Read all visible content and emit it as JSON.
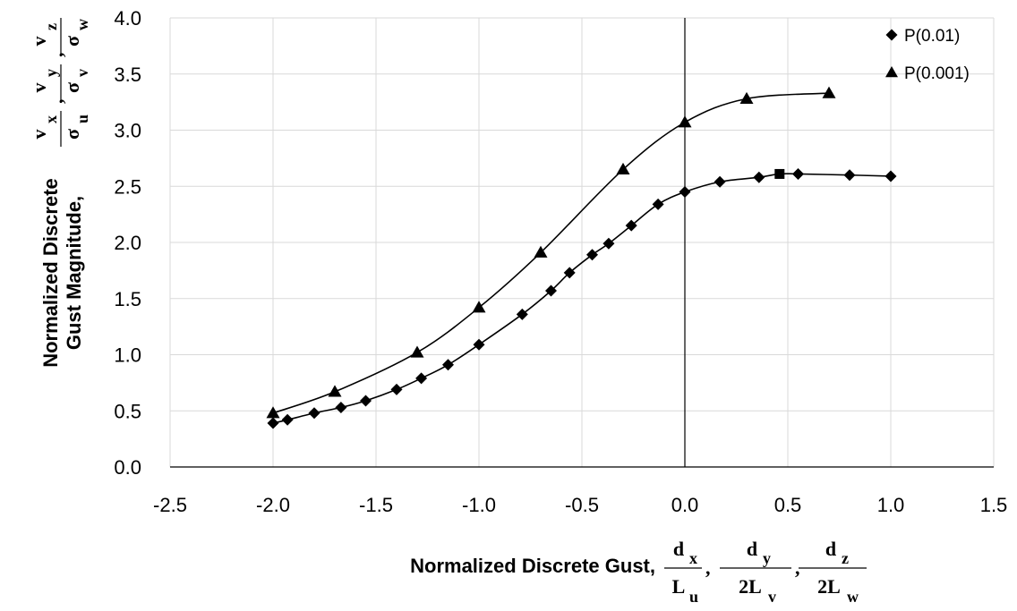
{
  "chart_data": {
    "type": "scatter",
    "x_range": [
      -2.5,
      1.5
    ],
    "y_range": [
      0.0,
      4.0
    ],
    "x_major_step": 0.5,
    "y_major_step": 0.5,
    "grid": true,
    "x_ticks": [
      "-2.5",
      "-2.0",
      "-1.5",
      "-1.0",
      "-0.5",
      "0.0",
      "0.5",
      "1.0",
      "1.5"
    ],
    "y_ticks": [
      "0.0",
      "0.5",
      "1.0",
      "1.5",
      "2.0",
      "2.5",
      "3.0",
      "3.5",
      "4.0"
    ],
    "xlabel": "Normalized Discrete Gust,",
    "ylabel_line1": "Normalized Discrete",
    "ylabel_line2": "Gust Magnitude,",
    "legend_position": "top-right",
    "series": [
      {
        "name": "P(0.01)",
        "marker": "diamond",
        "x": [
          -2.0,
          -1.93,
          -1.8,
          -1.67,
          -1.55,
          -1.4,
          -1.28,
          -1.15,
          -1.0,
          -0.79,
          -0.65,
          -0.56,
          -0.45,
          -0.37,
          -0.26,
          -0.13,
          0.0,
          0.17,
          0.36,
          0.46,
          0.55,
          0.8,
          1.0
        ],
        "y": [
          0.39,
          0.42,
          0.48,
          0.53,
          0.59,
          0.69,
          0.79,
          0.91,
          1.09,
          1.36,
          1.57,
          1.73,
          1.89,
          1.99,
          2.15,
          2.34,
          2.45,
          2.54,
          2.58,
          2.61,
          2.61,
          2.6,
          2.59
        ],
        "special_points": [
          {
            "index": 19,
            "marker": "square"
          }
        ]
      },
      {
        "name": "P(0.001)",
        "marker": "triangle",
        "x": [
          -2.0,
          -1.7,
          -1.3,
          -1.0,
          -0.7,
          -0.3,
          0.0,
          0.3,
          0.7
        ],
        "y": [
          0.48,
          0.67,
          1.02,
          1.42,
          1.91,
          2.65,
          3.07,
          3.28,
          3.33
        ]
      }
    ]
  }
}
